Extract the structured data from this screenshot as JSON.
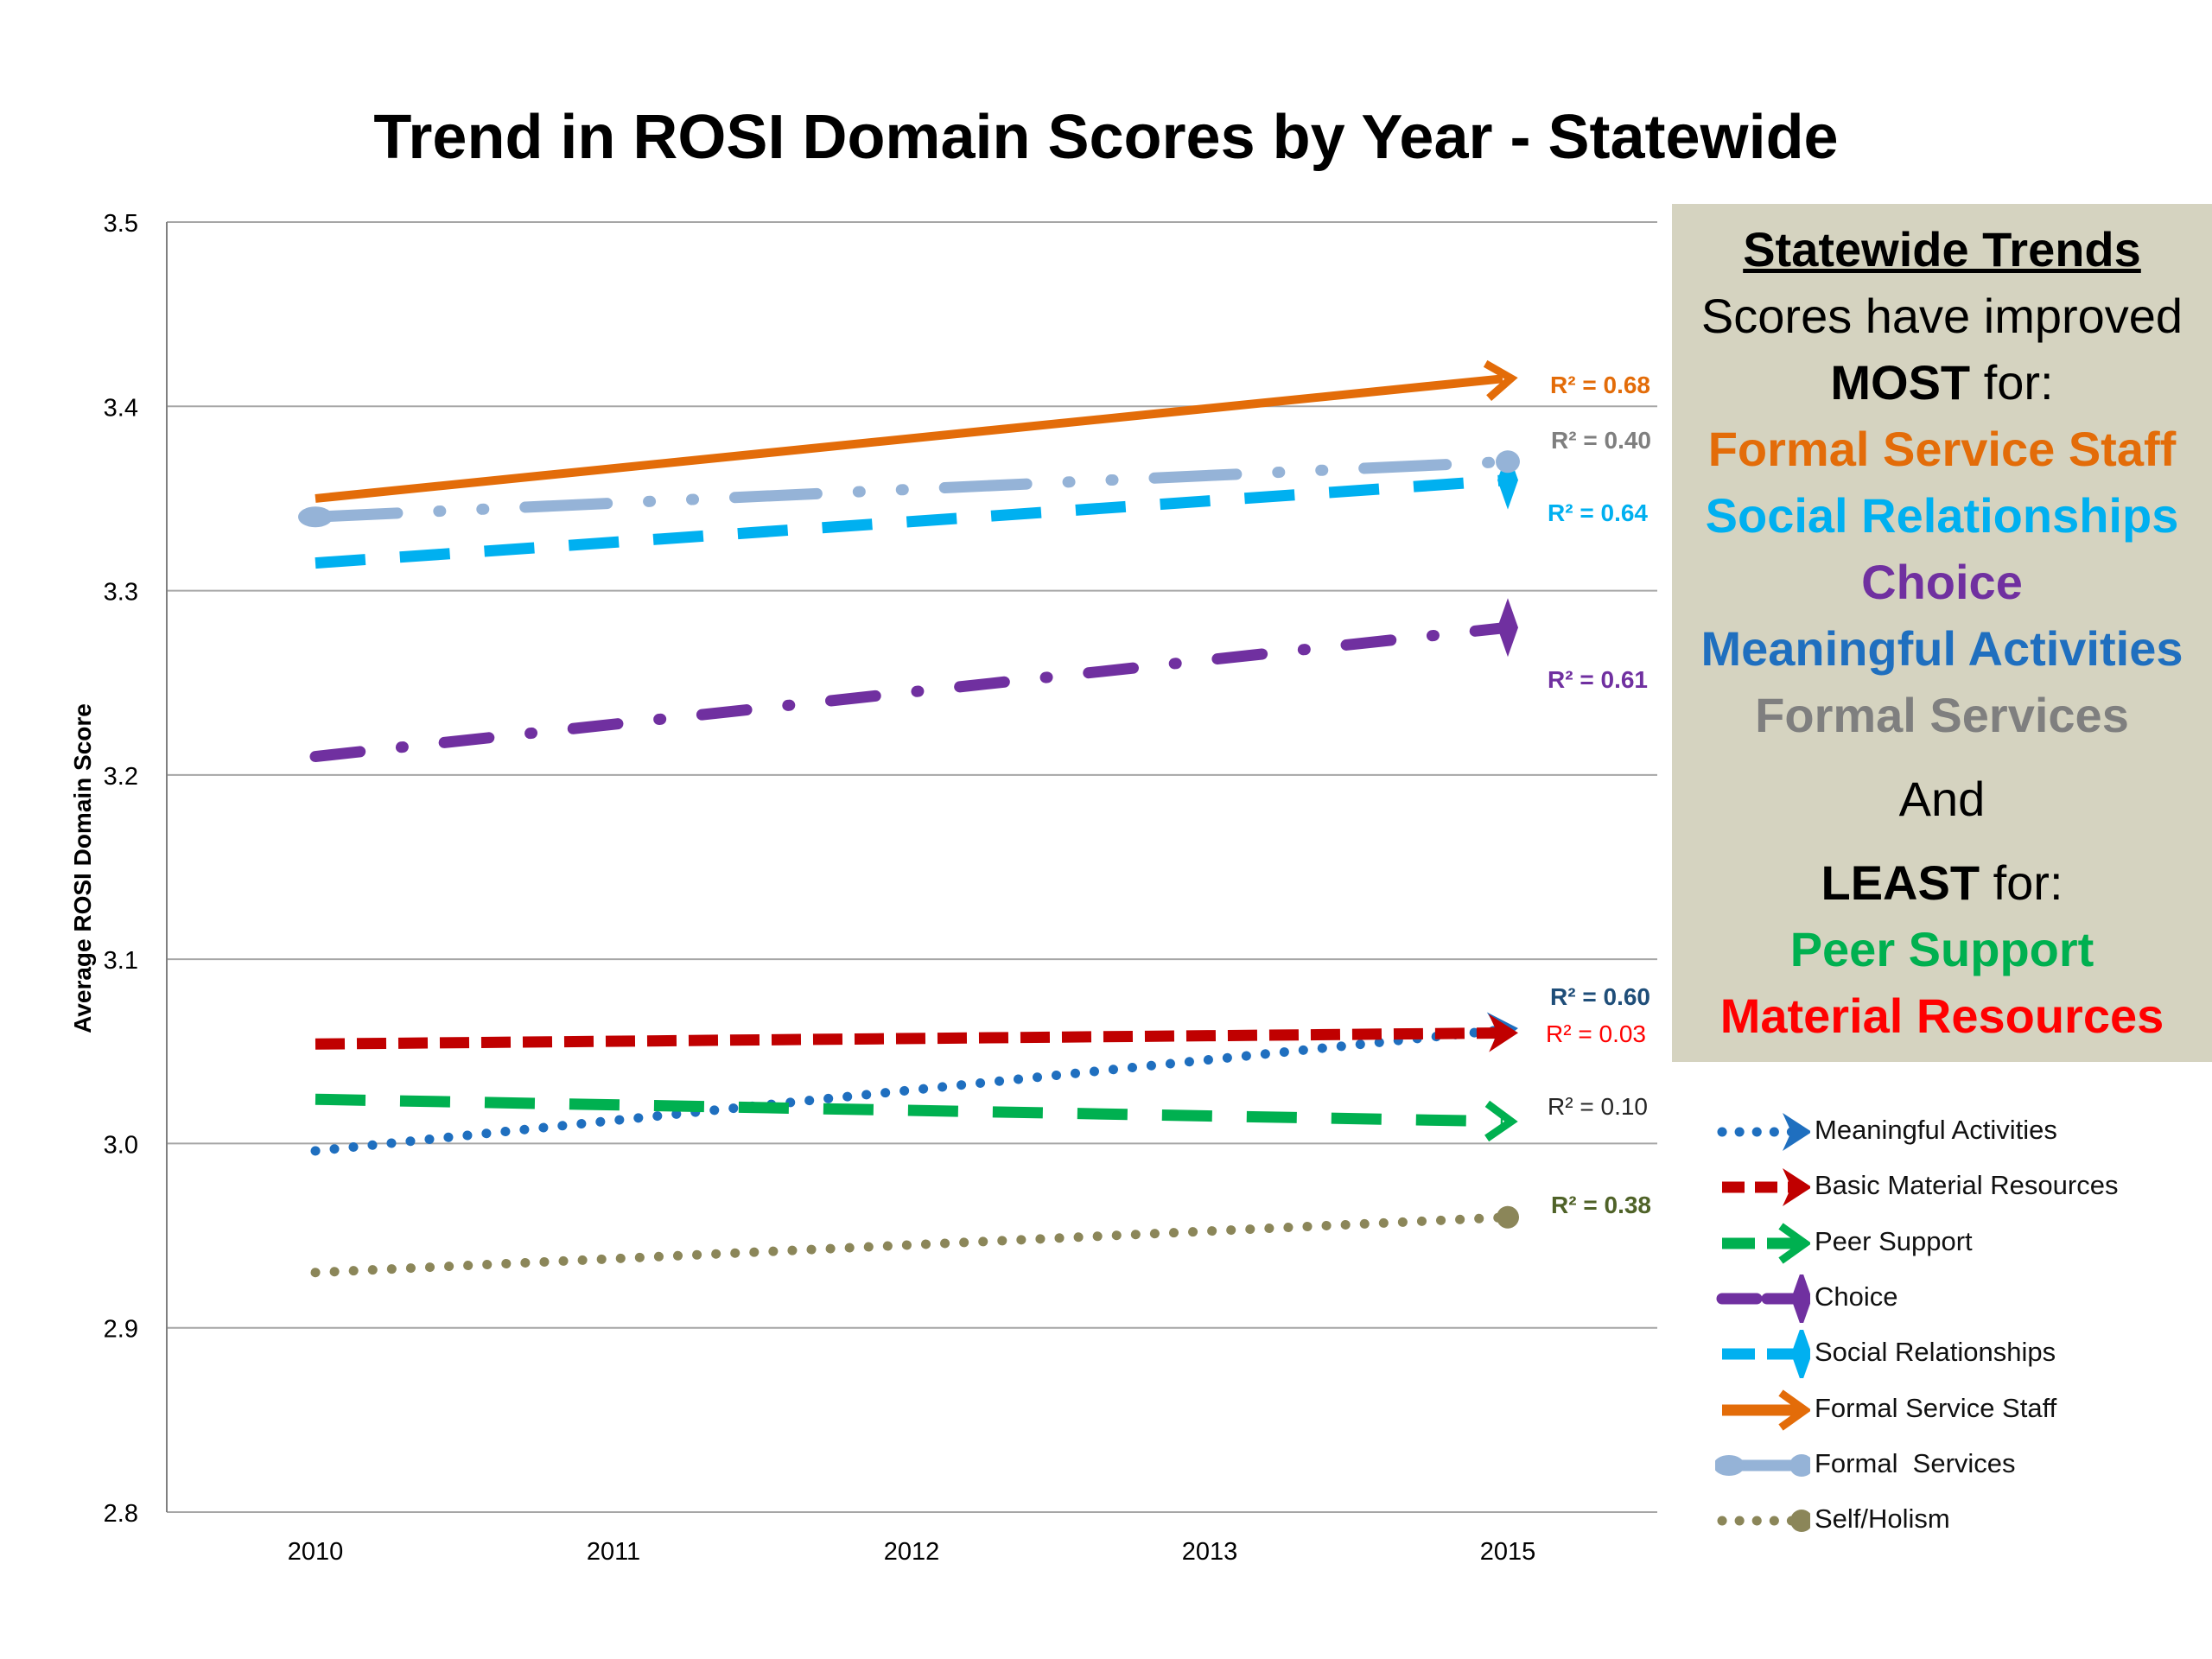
{
  "chart_data": {
    "type": "line",
    "title": "Trend in ROSI Domain Scores by Year - Statewide",
    "xlabel": "",
    "ylabel": "Average ROSI Domain Score",
    "x": [
      2010,
      2011,
      2012,
      2013,
      2015
    ],
    "x_ticks": [
      "2010",
      "2011",
      "2012",
      "2013",
      "2015"
    ],
    "ylim": [
      2.8,
      3.5
    ],
    "y_ticks": [
      "2.8",
      "2.9",
      "3.0",
      "3.1",
      "3.2",
      "3.3",
      "3.4",
      "3.5"
    ],
    "grid": "horizontal",
    "legend_position": "right",
    "series": [
      {
        "name": "Meaningful Activities",
        "color": "#1f6fbf",
        "dash": "dot",
        "marker": "arrow",
        "start": 2.996,
        "end": 3.062,
        "r2_label": "R² = 0.60"
      },
      {
        "name": "Basic Material Resources",
        "color": "#c00000",
        "dash": "dash",
        "marker": "arrow",
        "start": 3.054,
        "end": 3.06,
        "r2_label": "R² = 0.03"
      },
      {
        "name": "Peer Support",
        "color": "#00b050",
        "dash": "longdash",
        "marker": "open-arrow",
        "start": 3.024,
        "end": 3.012,
        "r2_label": "R² = 0.10"
      },
      {
        "name": "Choice",
        "color": "#7030a0",
        "dash": "dashdot",
        "marker": "diamond",
        "start": 3.21,
        "end": 3.28,
        "r2_label": "R² = 0.61"
      },
      {
        "name": "Social Relationships",
        "color": "#00b0f0",
        "dash": "longdash",
        "marker": "diamond",
        "start": 3.315,
        "end": 3.36,
        "r2_label": "R² = 0.64"
      },
      {
        "name": "Formal Service Staff",
        "color": "#e36c09",
        "dash": "solid",
        "marker": "open-arrow",
        "start": 3.35,
        "end": 3.415,
        "r2_label": "R² = 0.68"
      },
      {
        "name": "Formal  Services",
        "color": "#95b3d7",
        "dash": "longdashdot",
        "marker": "oval",
        "start": 3.34,
        "end": 3.37,
        "r2_label": "R² = 0.40"
      },
      {
        "name": "Self/Holism",
        "color": "#8b8659",
        "dash": "dot",
        "marker": "circle",
        "start": 2.93,
        "end": 2.96,
        "r2_label": "R² = 0.38"
      }
    ]
  },
  "trends_box": {
    "heading": "Statewide Trends",
    "line1": "Scores have improved",
    "most_bold": "MOST",
    "most_rest": " for:",
    "most_items": [
      {
        "text": "Formal Service Staff",
        "color": "#e36c09"
      },
      {
        "text": "Social Relationships",
        "color": "#00b0f0"
      },
      {
        "text": "Choice",
        "color": "#7030a0"
      },
      {
        "text": "Meaningful Activities",
        "color": "#1f6fbf"
      },
      {
        "text": "Formal Services",
        "color": "#7f7f7f"
      }
    ],
    "and": "And",
    "least_bold": "LEAST",
    "least_rest": " for:",
    "least_items": [
      {
        "text": "Peer Support",
        "color": "#00b050"
      },
      {
        "text": "Material Resources",
        "color": "#ff0000"
      }
    ]
  }
}
